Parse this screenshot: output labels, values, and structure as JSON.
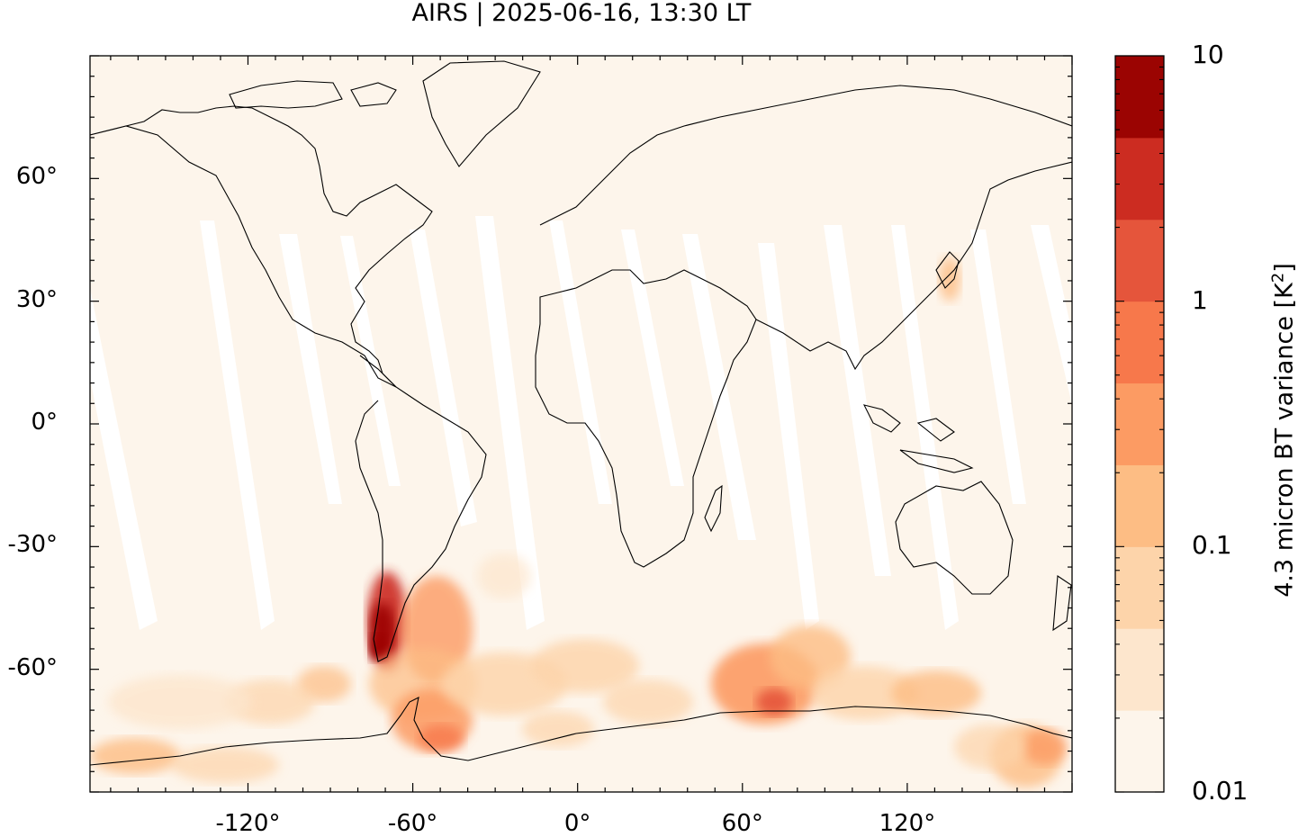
{
  "title": "AIRS | 2025-06-16, 13:30 LT",
  "map": {
    "projection": "equirectangular",
    "lon_range": [
      -177.5,
      180
    ],
    "lat_range": [
      -90,
      90
    ],
    "y_ticks": [
      {
        "value": 60,
        "label": "60°"
      },
      {
        "value": 30,
        "label": "30°"
      },
      {
        "value": 0,
        "label": "0°"
      },
      {
        "value": -30,
        "label": "-30°"
      },
      {
        "value": -60,
        "label": "-60°"
      }
    ],
    "x_ticks": [
      {
        "value": -120,
        "label": "-120°"
      },
      {
        "value": -60,
        "label": "-60°"
      },
      {
        "value": 0,
        "label": "0°"
      },
      {
        "value": 60,
        "label": "60°"
      },
      {
        "value": 120,
        "label": "120°"
      }
    ],
    "background_color": "#fdf5eb",
    "coastline_color": "#000000"
  },
  "colorbar": {
    "title": "4.3 micron BT variance [K",
    "title_sup": "2",
    "title_end": "]",
    "scale": "log",
    "range": [
      0.01,
      10
    ],
    "tick_labels": [
      "10",
      "1",
      "0.1",
      "0.01"
    ],
    "colors": [
      "#fdf5eb",
      "#fde6cd",
      "#fdd4aa",
      "#fdbd84",
      "#fc9b63",
      "#f7784b",
      "#e5553b",
      "#cc2c21",
      "#9b0402"
    ]
  }
}
